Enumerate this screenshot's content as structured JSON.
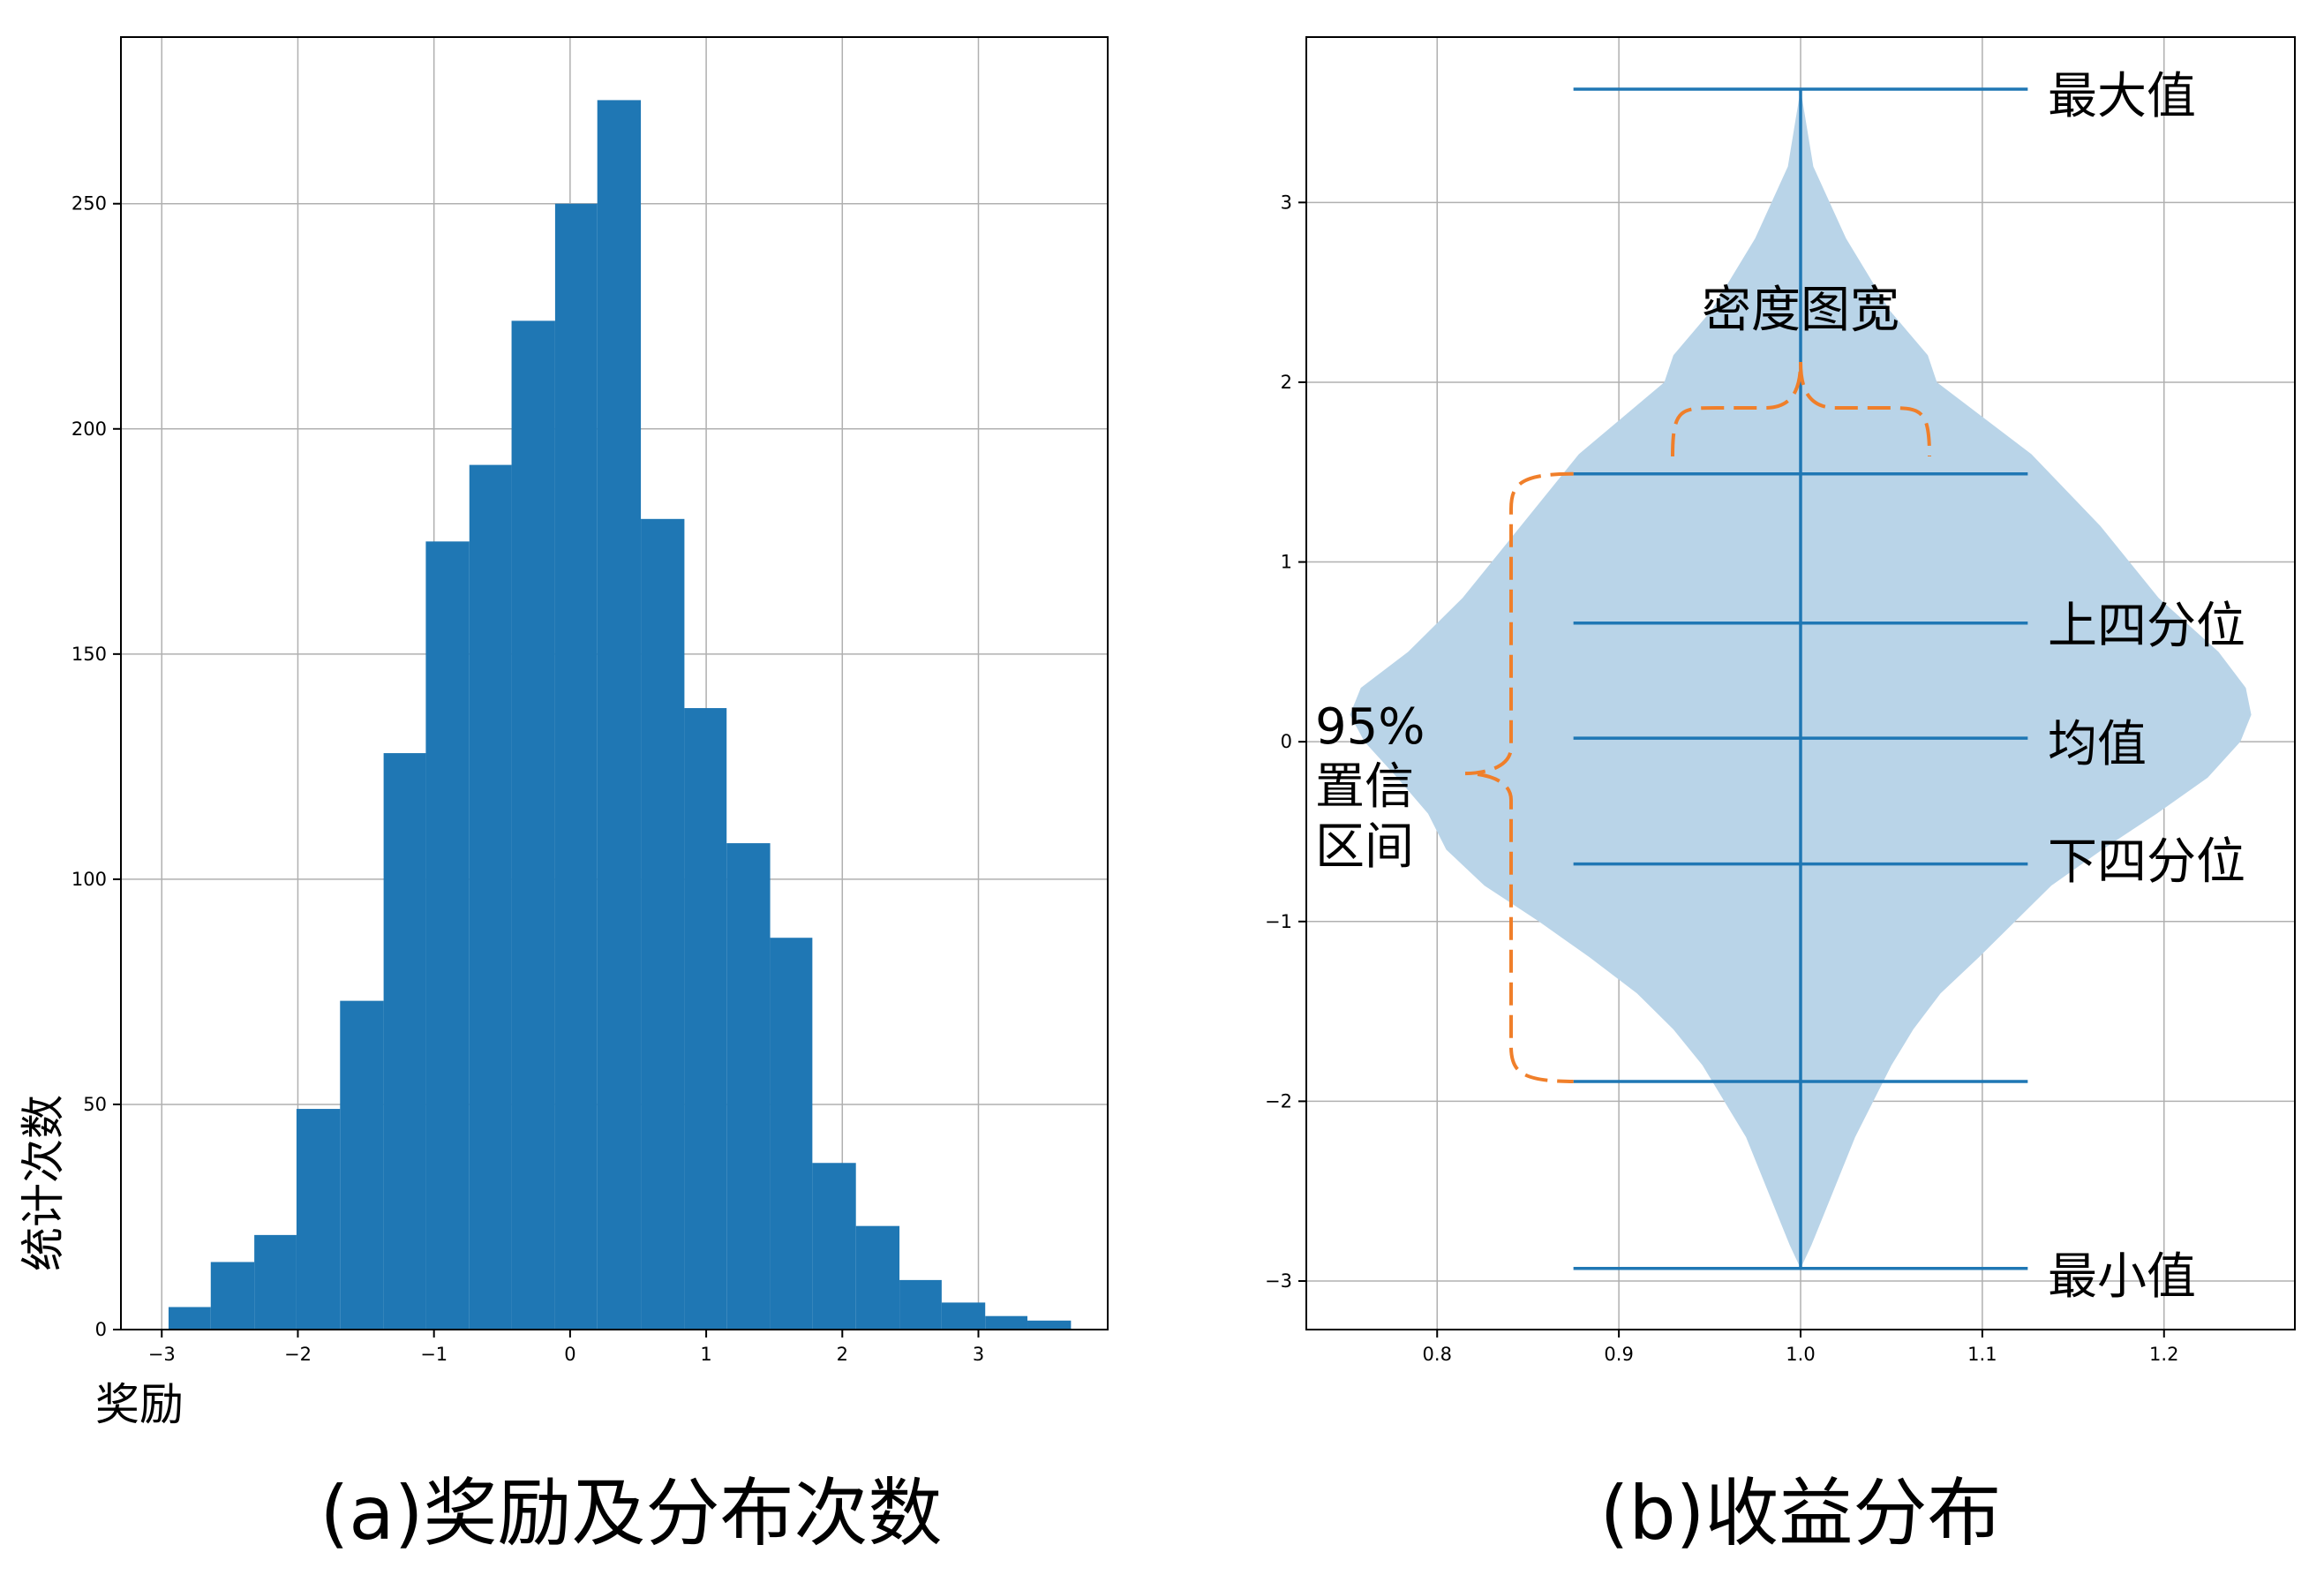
{
  "colors": {
    "hist_bar": "#1f77b4",
    "violin_line": "#1f77b4",
    "violin_body": "#b9d4e8",
    "bracket": "#f07f2a",
    "grid": "#b0b0b0"
  },
  "chart_data": [
    {
      "type": "bar",
      "subplot_caption": "(a)奖励及分布次数",
      "xlabel": "奖励",
      "ylabel": "统计次数",
      "xlim": [
        -3.3,
        3.95
      ],
      "ylim": [
        0,
        287
      ],
      "xticks": [
        -3,
        -2,
        -1,
        0,
        1,
        2,
        3
      ],
      "xtick_labels": [
        "−3",
        "−2",
        "−1",
        "0",
        "1",
        "2",
        "3"
      ],
      "yticks": [
        0,
        50,
        100,
        150,
        200,
        250
      ],
      "ytick_labels": [
        "0",
        "50",
        "100",
        "150",
        "200",
        "250"
      ],
      "grid": true,
      "bin_edges": [
        -2.95,
        -2.64,
        -2.32,
        -2.01,
        -1.69,
        -1.37,
        -1.06,
        -0.74,
        -0.43,
        -0.11,
        0.2,
        0.52,
        0.84,
        1.15,
        1.47,
        1.78,
        2.1,
        2.42,
        2.73,
        3.05,
        3.36,
        3.68
      ],
      "values": [
        5,
        15,
        21,
        49,
        73,
        128,
        175,
        192,
        224,
        250,
        273,
        180,
        138,
        108,
        87,
        37,
        23,
        11,
        6,
        3,
        2
      ]
    },
    {
      "type": "violin",
      "subplot_caption": "(b)收益分布",
      "xlim": [
        0.728,
        1.272
      ],
      "ylim": [
        -3.27,
        3.92
      ],
      "xticks": [
        0.8,
        0.9,
        1.0,
        1.1,
        1.2
      ],
      "xtick_labels": [
        "0.8",
        "0.9",
        "1.0",
        "1.1",
        "1.2"
      ],
      "yticks": [
        -3,
        -2,
        -1,
        0,
        1,
        2,
        3
      ],
      "ytick_labels": [
        "−3",
        "−2",
        "−1",
        "0",
        "1",
        "2",
        "3"
      ],
      "grid": true,
      "position": 1.0,
      "max": 3.63,
      "min": -2.93,
      "mean": 0.02,
      "upper_quartile": 0.66,
      "lower_quartile": -0.68,
      "ci_upper": 1.49,
      "ci_lower": -1.89,
      "density_profile": {
        "y": [
          3.63,
          3.2,
          2.8,
          2.4,
          2.15,
          2.0,
          1.6,
          1.2,
          0.8,
          0.5,
          0.3,
          0.15,
          0.0,
          -0.2,
          -0.4,
          -0.6,
          -0.8,
          -1.0,
          -1.2,
          -1.4,
          -1.6,
          -1.8,
          -2.0,
          -2.2,
          -2.4,
          -2.6,
          -2.8,
          -2.93
        ],
        "left_x": [
          1.0,
          0.993,
          0.975,
          0.951,
          0.93,
          0.925,
          0.878,
          0.846,
          0.814,
          0.784,
          0.758,
          0.752,
          0.76,
          0.778,
          0.795,
          0.805,
          0.826,
          0.856,
          0.884,
          0.91,
          0.93,
          0.946,
          0.958,
          0.97,
          0.978,
          0.986,
          0.994,
          1.0
        ],
        "right_x": [
          1.0,
          1.007,
          1.025,
          1.049,
          1.07,
          1.075,
          1.127,
          1.165,
          1.197,
          1.23,
          1.245,
          1.248,
          1.242,
          1.224,
          1.196,
          1.166,
          1.138,
          1.118,
          1.098,
          1.077,
          1.062,
          1.05,
          1.04,
          1.03,
          1.022,
          1.014,
          1.006,
          1.0
        ]
      },
      "annotations": {
        "max": "最大值",
        "density_width": "密度图宽",
        "upper_quartile": "上四分位",
        "mean": "均值",
        "lower_quartile": "下四分位",
        "min": "最小值",
        "ci_line1": "95%",
        "ci_line2": "置信",
        "ci_line3": "区间"
      }
    }
  ]
}
